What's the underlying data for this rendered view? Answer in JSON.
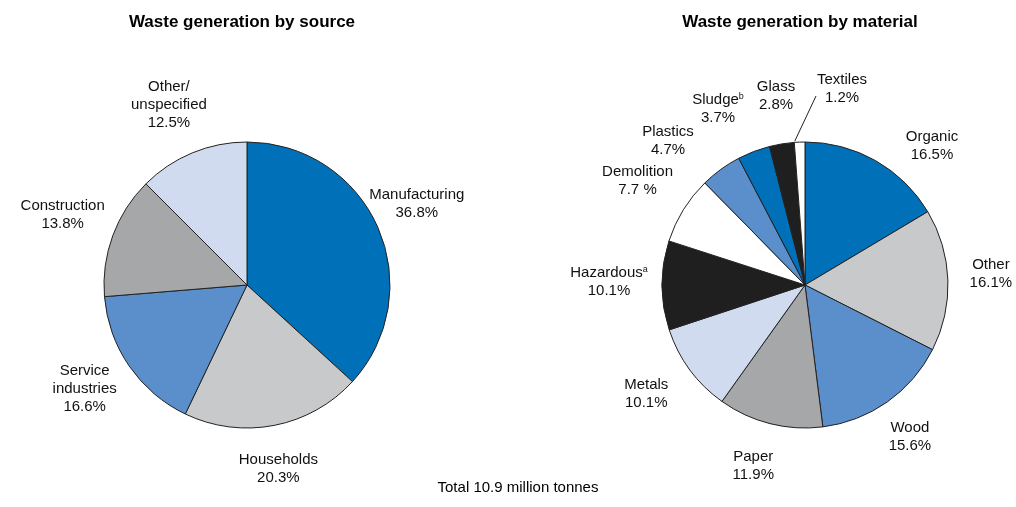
{
  "chart_data": [
    {
      "type": "pie",
      "title": "Waste generation by source",
      "categories": [
        "Manufacturing",
        "Households",
        "Service industries",
        "Construction",
        "Other/ unspecified"
      ],
      "values": [
        36.8,
        20.3,
        16.6,
        13.8,
        12.5
      ],
      "value_labels": [
        "36.8%",
        "20.3%",
        "16.6%",
        "13.8%",
        "12.5%"
      ],
      "colors": [
        "#0070b8",
        "#c8c9cb",
        "#5b8fcc",
        "#a6a7a9",
        "#d0dbef"
      ]
    },
    {
      "type": "pie",
      "title": "Waste generation by material",
      "categories": [
        "Organic",
        "Other",
        "Wood",
        "Paper",
        "Metals",
        "Hazardous$^{a}$",
        "Demolition",
        "Plastics",
        "Sludge$^{b}$",
        "Glass",
        "Textiles"
      ],
      "values": [
        16.5,
        16.1,
        15.6,
        11.9,
        10.1,
        10.1,
        7.7,
        4.7,
        3.7,
        2.8,
        1.2
      ],
      "value_labels": [
        "16.5%",
        "16.1%",
        "15.6%",
        "11.9%",
        "10.1%",
        "10.1%",
        "7.7 %",
        "4.7%",
        "3.7%",
        "2.8%",
        "1.2%"
      ],
      "colors": [
        "#0070b8",
        "#c8c9cb",
        "#5b8fcc",
        "#a6a7a9",
        "#d0dbef",
        "#1f1f1f",
        "#ffffff",
        "#5b8fcc",
        "#0070b8",
        "#1f1f1f",
        "#ffffff"
      ],
      "annotations": [
        "Total 10.9 million tonnes"
      ]
    }
  ]
}
